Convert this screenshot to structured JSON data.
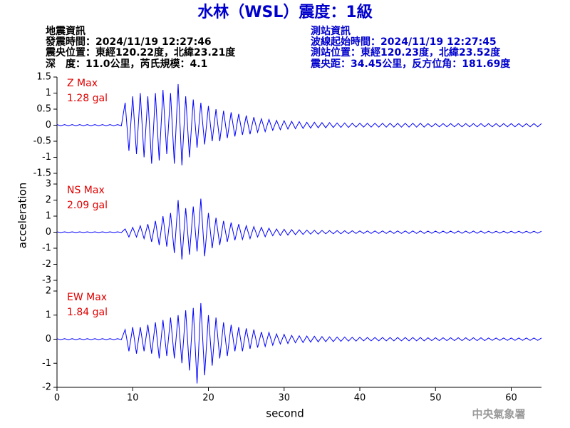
{
  "title": "水林（WSL）震度：1級",
  "info_left": [
    "地震資訊",
    "發震時間：2024/11/19 12:27:46",
    "震央位置：東經120.22度，北緯23.21度",
    "深　度：11.0公里，芮氏規模：4.1"
  ],
  "info_right": [
    "測站資訊",
    "波線起始時間：2024/11/19 12:27:45",
    "測站位置：東經120.23度，北緯23.52度",
    "震央距：34.45公里，反方位角：181.69度"
  ],
  "ylabel": "acceleration",
  "footer": "中央氣象署",
  "chart_data": [
    {
      "type": "line",
      "annotations": [
        "Z Max",
        "1.28 gal"
      ],
      "color": "#0000ff",
      "x": [
        0,
        0.5,
        1,
        1.5,
        2,
        2.5,
        3,
        3.5,
        4,
        4.5,
        5,
        5.5,
        6,
        6.5,
        7,
        7.5,
        8,
        8.5,
        9,
        9.5,
        10,
        10.5,
        11,
        11.5,
        12,
        12.5,
        13,
        13.5,
        14,
        14.5,
        15,
        15.5,
        16,
        16.5,
        17,
        17.5,
        18,
        18.5,
        19,
        19.5,
        20,
        20.5,
        21,
        21.5,
        22,
        22.5,
        23,
        23.5,
        24,
        24.5,
        25,
        25.5,
        26,
        26.5,
        27,
        27.5,
        28,
        28.5,
        29,
        29.5,
        30,
        30.5,
        31,
        31.5,
        32,
        32.5,
        33,
        33.5,
        34,
        34.5,
        35,
        35.5,
        36,
        36.5,
        37,
        37.5,
        38,
        38.5,
        39,
        39.5,
        40,
        40.5,
        41,
        41.5,
        42,
        42.5,
        43,
        43.5,
        44,
        44.5,
        45,
        45.5,
        46,
        46.5,
        47,
        47.5,
        48,
        48.5,
        49,
        49.5,
        50,
        50.5,
        51,
        51.5,
        52,
        52.5,
        53,
        53.5,
        54,
        54.5,
        55,
        55.5,
        56,
        56.5,
        57,
        57.5,
        58,
        58.5,
        59,
        59.5,
        60,
        60.5,
        61,
        61.5,
        62,
        62.5,
        63,
        63.5,
        64
      ],
      "values": [
        0.02,
        -0.02,
        0.02,
        -0.02,
        0.02,
        -0.02,
        0.02,
        -0.02,
        0.02,
        -0.02,
        0.02,
        -0.02,
        0.02,
        -0.02,
        0.02,
        -0.02,
        0.02,
        -0.02,
        0.7,
        -0.8,
        0.9,
        -0.9,
        1.0,
        -1.0,
        0.9,
        -1.2,
        1.0,
        -1.1,
        1.1,
        -0.9,
        1.0,
        -1.2,
        1.28,
        -1.25,
        0.9,
        -1.0,
        0.8,
        -0.7,
        0.7,
        -0.6,
        0.6,
        -0.5,
        0.5,
        -0.5,
        0.45,
        -0.4,
        0.4,
        -0.35,
        0.35,
        -0.3,
        0.3,
        -0.28,
        0.25,
        -0.22,
        0.2,
        -0.2,
        0.18,
        -0.16,
        0.15,
        -0.14,
        0.14,
        -0.12,
        0.12,
        -0.11,
        0.11,
        -0.1,
        0.09,
        -0.09,
        0.09,
        -0.08,
        0.08,
        -0.08,
        0.08,
        -0.07,
        0.07,
        -0.07,
        0.07,
        -0.07,
        0.06,
        -0.06,
        0.06,
        -0.06,
        0.06,
        -0.06,
        0.06,
        -0.06,
        0.06,
        -0.06,
        0.06,
        -0.06,
        0.06,
        -0.06,
        0.06,
        -0.06,
        0.06,
        -0.06,
        0.06,
        -0.06,
        0.05,
        -0.05,
        0.05,
        -0.05,
        0.05,
        -0.05,
        0.05,
        -0.05,
        0.05,
        -0.05,
        0.05,
        -0.05,
        0.05,
        -0.05,
        0.05,
        -0.05,
        0.05,
        -0.05,
        0.05,
        -0.05,
        0.05,
        -0.05,
        0.05,
        -0.05,
        0.05,
        -0.05,
        0.05,
        -0.05,
        0.05,
        -0.05,
        0.05
      ],
      "xlim": [
        0,
        64
      ],
      "ylim": [
        -1.5,
        1.5
      ],
      "yticks": [
        1.5,
        1,
        0.5,
        0,
        -0.5,
        -1,
        -1.5
      ]
    },
    {
      "type": "line",
      "annotations": [
        "NS Max",
        "2.09 gal"
      ],
      "color": "#0000ff",
      "x": [
        0,
        0.5,
        1,
        1.5,
        2,
        2.5,
        3,
        3.5,
        4,
        4.5,
        5,
        5.5,
        6,
        6.5,
        7,
        7.5,
        8,
        8.5,
        9,
        9.5,
        10,
        10.5,
        11,
        11.5,
        12,
        12.5,
        13,
        13.5,
        14,
        14.5,
        15,
        15.5,
        16,
        16.5,
        17,
        17.5,
        18,
        18.5,
        19,
        19.5,
        20,
        20.5,
        21,
        21.5,
        22,
        22.5,
        23,
        23.5,
        24,
        24.5,
        25,
        25.5,
        26,
        26.5,
        27,
        27.5,
        28,
        28.5,
        29,
        29.5,
        30,
        30.5,
        31,
        31.5,
        32,
        32.5,
        33,
        33.5,
        34,
        34.5,
        35,
        35.5,
        36,
        36.5,
        37,
        37.5,
        38,
        38.5,
        39,
        39.5,
        40,
        40.5,
        41,
        41.5,
        42,
        42.5,
        43,
        43.5,
        44,
        44.5,
        45,
        45.5,
        46,
        46.5,
        47,
        47.5,
        48,
        48.5,
        49,
        49.5,
        50,
        50.5,
        51,
        51.5,
        52,
        52.5,
        53,
        53.5,
        54,
        54.5,
        55,
        55.5,
        56,
        56.5,
        57,
        57.5,
        58,
        58.5,
        59,
        59.5,
        60,
        60.5,
        61,
        61.5,
        62,
        62.5,
        63,
        63.5,
        64
      ],
      "values": [
        0.02,
        -0.02,
        0.02,
        -0.02,
        0.02,
        -0.02,
        0.02,
        -0.02,
        0.02,
        -0.02,
        0.02,
        -0.02,
        0.02,
        -0.02,
        0.02,
        -0.02,
        0.02,
        -0.02,
        0.2,
        -0.3,
        0.3,
        -0.3,
        0.4,
        -0.4,
        0.5,
        -0.6,
        0.7,
        -0.8,
        1.0,
        -0.9,
        1.2,
        -1.3,
        2.0,
        -1.7,
        1.5,
        -1.4,
        1.6,
        -1.2,
        2.09,
        -1.5,
        1.2,
        -1.0,
        0.9,
        -0.8,
        0.7,
        -0.6,
        0.6,
        -0.5,
        0.5,
        -0.45,
        0.4,
        -0.4,
        0.35,
        -0.3,
        0.3,
        -0.28,
        0.25,
        -0.22,
        0.2,
        -0.2,
        0.18,
        -0.18,
        0.16,
        -0.15,
        0.15,
        -0.14,
        0.13,
        -0.12,
        0.12,
        -0.12,
        0.11,
        -0.1,
        0.1,
        -0.1,
        0.1,
        -0.1,
        0.09,
        -0.09,
        0.09,
        -0.08,
        0.08,
        -0.08,
        0.08,
        -0.08,
        0.08,
        -0.08,
        0.08,
        -0.08,
        0.08,
        -0.08,
        0.08,
        -0.08,
        0.08,
        -0.08,
        0.08,
        -0.08,
        0.08,
        -0.08,
        0.07,
        -0.07,
        0.07,
        -0.07,
        0.07,
        -0.07,
        0.07,
        -0.07,
        0.07,
        -0.07,
        0.07,
        -0.07,
        0.07,
        -0.07,
        0.07,
        -0.07,
        0.06,
        -0.06,
        0.06,
        -0.06,
        0.06,
        -0.06,
        0.06,
        -0.06,
        0.06,
        -0.06,
        0.06,
        -0.06,
        0.06,
        -0.06,
        0.06
      ],
      "xlim": [
        0,
        64
      ],
      "ylim": [
        -3,
        3
      ],
      "yticks": [
        3,
        2,
        1,
        0,
        -1,
        -2,
        -3
      ]
    },
    {
      "type": "line",
      "annotations": [
        "EW Max",
        "1.84 gal"
      ],
      "color": "#0000ff",
      "x": [
        0,
        0.5,
        1,
        1.5,
        2,
        2.5,
        3,
        3.5,
        4,
        4.5,
        5,
        5.5,
        6,
        6.5,
        7,
        7.5,
        8,
        8.5,
        9,
        9.5,
        10,
        10.5,
        11,
        11.5,
        12,
        12.5,
        13,
        13.5,
        14,
        14.5,
        15,
        15.5,
        16,
        16.5,
        17,
        17.5,
        18,
        18.5,
        19,
        19.5,
        20,
        20.5,
        21,
        21.5,
        22,
        22.5,
        23,
        23.5,
        24,
        24.5,
        25,
        25.5,
        26,
        26.5,
        27,
        27.5,
        28,
        28.5,
        29,
        29.5,
        30,
        30.5,
        31,
        31.5,
        32,
        32.5,
        33,
        33.5,
        34,
        34.5,
        35,
        35.5,
        36,
        36.5,
        37,
        37.5,
        38,
        38.5,
        39,
        39.5,
        40,
        40.5,
        41,
        41.5,
        42,
        42.5,
        43,
        43.5,
        44,
        44.5,
        45,
        45.5,
        46,
        46.5,
        47,
        47.5,
        48,
        48.5,
        49,
        49.5,
        50,
        50.5,
        51,
        51.5,
        52,
        52.5,
        53,
        53.5,
        54,
        54.5,
        55,
        55.5,
        56,
        56.5,
        57,
        57.5,
        58,
        58.5,
        59,
        59.5,
        60,
        60.5,
        61,
        61.5,
        62,
        62.5,
        63,
        63.5,
        64
      ],
      "values": [
        0.02,
        -0.02,
        0.02,
        -0.02,
        0.02,
        -0.02,
        0.02,
        -0.02,
        0.02,
        -0.02,
        0.02,
        -0.02,
        0.02,
        -0.02,
        0.02,
        -0.02,
        0.02,
        -0.02,
        0.4,
        -0.5,
        0.5,
        -0.6,
        0.5,
        -0.5,
        0.6,
        -0.6,
        0.7,
        -0.8,
        0.8,
        -0.7,
        0.9,
        -0.8,
        1.0,
        -1.0,
        1.2,
        -1.3,
        1.3,
        -1.84,
        1.5,
        -1.5,
        1.0,
        -1.1,
        0.9,
        -0.8,
        0.7,
        -0.7,
        0.6,
        -0.5,
        0.5,
        -0.5,
        0.45,
        -0.4,
        0.4,
        -0.35,
        0.3,
        -0.3,
        0.28,
        -0.25,
        0.22,
        -0.2,
        0.2,
        -0.18,
        0.16,
        -0.15,
        0.14,
        -0.14,
        0.13,
        -0.12,
        0.12,
        -0.11,
        0.11,
        -0.1,
        0.1,
        -0.1,
        0.09,
        -0.09,
        0.09,
        -0.08,
        0.08,
        -0.08,
        0.08,
        -0.07,
        0.07,
        -0.07,
        0.07,
        -0.07,
        0.07,
        -0.07,
        0.07,
        -0.07,
        0.07,
        -0.07,
        0.07,
        -0.07,
        0.07,
        -0.07,
        0.07,
        -0.07,
        0.06,
        -0.06,
        0.06,
        -0.06,
        0.06,
        -0.06,
        0.06,
        -0.06,
        0.06,
        -0.06,
        0.06,
        -0.06,
        0.06,
        -0.06,
        0.06,
        -0.06,
        0.05,
        -0.05,
        0.05,
        -0.05,
        0.05,
        -0.05,
        0.05,
        -0.05,
        0.05,
        -0.05,
        0.05,
        -0.05,
        0.05,
        -0.05,
        0.05
      ],
      "xlim": [
        0,
        64
      ],
      "ylim": [
        -2,
        2
      ],
      "yticks": [
        2,
        1,
        0,
        -1,
        -2
      ],
      "xticks": [
        0,
        10,
        20,
        30,
        40,
        50,
        60
      ],
      "xlabel": "second"
    }
  ]
}
